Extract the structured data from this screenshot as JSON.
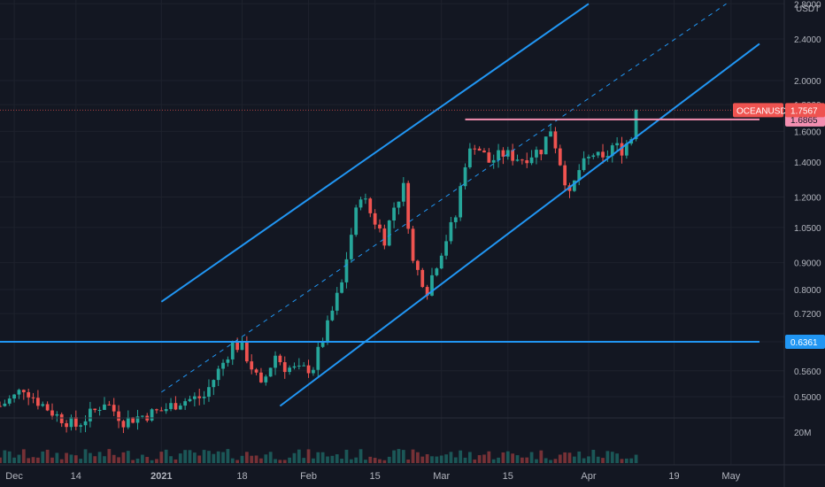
{
  "chart_data": {
    "type": "candlestick",
    "symbol": "OCEANUSDT",
    "quote_currency": "USDT",
    "price_scale": "log",
    "x_start": "2020-11-28",
    "x_end": "2021-05-07",
    "y_axis_ticks": [
      "2.8000",
      "2.4000",
      "2.0000",
      "1.8000",
      "1.6000",
      "1.4000",
      "1.2000",
      "1.0500",
      "0.9000",
      "0.8000",
      "0.7200",
      "0.6361",
      "0.5600",
      "0.5000"
    ],
    "x_axis_ticks": [
      {
        "label": "Dec",
        "date": "2020-12-01"
      },
      {
        "label": "14",
        "date": "2020-12-14"
      },
      {
        "label": "2021",
        "date": "2021-01-01"
      },
      {
        "label": "18",
        "date": "2021-01-18"
      },
      {
        "label": "Feb",
        "date": "2021-02-01"
      },
      {
        "label": "15",
        "date": "2021-02-15"
      },
      {
        "label": "Mar",
        "date": "2021-03-01"
      },
      {
        "label": "15",
        "date": "2021-03-15"
      },
      {
        "label": "Apr",
        "date": "2021-04-01"
      },
      {
        "label": "19",
        "date": "2021-04-19"
      },
      {
        "label": "May",
        "date": "2021-05-01"
      }
    ],
    "last_price": {
      "label": "OCEANUSDT",
      "value": "1.7567"
    },
    "price_markers": [
      {
        "value": "1.6865",
        "color": "#f48fb1",
        "text_color": "#131722"
      },
      {
        "value": "0.6361",
        "color": "#2196f3",
        "text_color": "#ffffff"
      }
    ],
    "volume_axis_label": "20M",
    "price_path": [
      {
        "date": "2020-11-28",
        "close": 0.48
      },
      {
        "date": "2020-12-01",
        "close": 0.5
      },
      {
        "date": "2020-12-03",
        "close": 0.52
      },
      {
        "date": "2020-12-06",
        "close": 0.49
      },
      {
        "date": "2020-12-10",
        "close": 0.46
      },
      {
        "date": "2020-12-14",
        "close": 0.44
      },
      {
        "date": "2020-12-18",
        "close": 0.47
      },
      {
        "date": "2020-12-20",
        "close": 0.49
      },
      {
        "date": "2020-12-24",
        "close": 0.45
      },
      {
        "date": "2021-01-01",
        "close": 0.47
      },
      {
        "date": "2021-01-05",
        "close": 0.49
      },
      {
        "date": "2021-01-10",
        "close": 0.5
      },
      {
        "date": "2021-01-14",
        "close": 0.58
      },
      {
        "date": "2021-01-16",
        "close": 0.63
      },
      {
        "date": "2021-01-18",
        "close": 0.62
      },
      {
        "date": "2021-01-20",
        "close": 0.57
      },
      {
        "date": "2021-01-22",
        "close": 0.52
      },
      {
        "date": "2021-01-25",
        "close": 0.6
      },
      {
        "date": "2021-01-27",
        "close": 0.57
      },
      {
        "date": "2021-01-30",
        "close": 0.56
      },
      {
        "date": "2021-02-02",
        "close": 0.57
      },
      {
        "date": "2021-02-05",
        "close": 0.68
      },
      {
        "date": "2021-02-08",
        "close": 0.82
      },
      {
        "date": "2021-02-10",
        "close": 1.02
      },
      {
        "date": "2021-02-12",
        "close": 1.22
      },
      {
        "date": "2021-02-14",
        "close": 1.12
      },
      {
        "date": "2021-02-17",
        "close": 1.0
      },
      {
        "date": "2021-02-19",
        "close": 1.15
      },
      {
        "date": "2021-02-21",
        "close": 1.25
      },
      {
        "date": "2021-02-23",
        "close": 0.9
      },
      {
        "date": "2021-02-26",
        "close": 0.8
      },
      {
        "date": "2021-02-28",
        "close": 0.9
      },
      {
        "date": "2021-03-02",
        "close": 1.0
      },
      {
        "date": "2021-03-04",
        "close": 1.1
      },
      {
        "date": "2021-03-06",
        "close": 1.4
      },
      {
        "date": "2021-03-08",
        "close": 1.52
      },
      {
        "date": "2021-03-11",
        "close": 1.4
      },
      {
        "date": "2021-03-14",
        "close": 1.45
      },
      {
        "date": "2021-03-18",
        "close": 1.42
      },
      {
        "date": "2021-03-22",
        "close": 1.48
      },
      {
        "date": "2021-03-24",
        "close": 1.62
      },
      {
        "date": "2021-03-26",
        "close": 1.4
      },
      {
        "date": "2021-03-28",
        "close": 1.2
      },
      {
        "date": "2021-03-30",
        "close": 1.35
      },
      {
        "date": "2021-04-02",
        "close": 1.45
      },
      {
        "date": "2021-04-04",
        "close": 1.4
      },
      {
        "date": "2021-04-06",
        "close": 1.5
      },
      {
        "date": "2021-04-08",
        "close": 1.48
      },
      {
        "date": "2021-04-10",
        "close": 1.56
      },
      {
        "date": "2021-04-11",
        "close": 1.76
      }
    ],
    "trendlines": [
      {
        "name": "channel-upper",
        "color": "#2196f3",
        "dashed": false,
        "p1": {
          "date": "2021-01-01",
          "price": 0.758
        },
        "p2": {
          "date": "2021-04-01",
          "price": 2.8
        }
      },
      {
        "name": "channel-middle",
        "color": "#2196f3",
        "dashed": true,
        "p1": {
          "date": "2021-01-01",
          "price": 0.51
        },
        "p2": {
          "date": "2021-04-30",
          "price": 2.8
        }
      },
      {
        "name": "channel-lower",
        "color": "#2196f3",
        "dashed": false,
        "p1": {
          "date": "2021-01-26",
          "price": 0.48
        },
        "p2": {
          "date": "2021-05-07",
          "price": 2.35
        }
      },
      {
        "name": "resistance",
        "color": "#f48fb1",
        "dashed": false,
        "p1": {
          "date": "2021-03-06",
          "price": 1.6865
        },
        "p2": {
          "date": "2021-05-07",
          "price": 1.6865
        }
      },
      {
        "name": "support",
        "color": "#2196f3",
        "dashed": false,
        "p1": {
          "date": "2020-11-28",
          "price": 0.6361
        },
        "p2": {
          "date": "2021-05-07",
          "price": 0.6361
        }
      }
    ],
    "colors": {
      "background": "#131722",
      "up": "#26a69a",
      "down": "#ef5350",
      "channel": "#2196f3",
      "resistance": "#f48fb1",
      "last_price": "#ef5350",
      "axis_text": "#b2b5be"
    }
  }
}
